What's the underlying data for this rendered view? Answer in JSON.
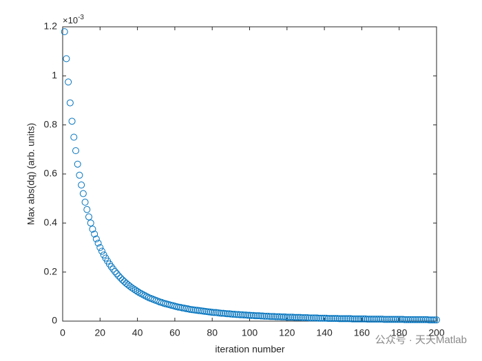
{
  "chart_data": {
    "type": "scatter",
    "xlabel": "iteration number",
    "ylabel": "Max abs(dq) (arb. units)",
    "y_exponent_base": "×10",
    "y_exponent_power": "-3",
    "watermark": "公众号 · 天天Matlab",
    "color": "#0072BD",
    "xlim": [
      0,
      200
    ],
    "ylim": [
      0,
      1.2
    ],
    "xticks": [
      0,
      20,
      40,
      60,
      80,
      100,
      120,
      140,
      160,
      180,
      200
    ],
    "yticks": [
      0,
      0.2,
      0.4,
      0.6,
      0.8,
      1,
      1.2
    ],
    "x": [
      1,
      2,
      3,
      4,
      5,
      6,
      7,
      8,
      9,
      10,
      11,
      12,
      13,
      14,
      15,
      16,
      17,
      18,
      19,
      20,
      21,
      22,
      23,
      24,
      25,
      26,
      27,
      28,
      29,
      30,
      31,
      32,
      33,
      34,
      35,
      36,
      37,
      38,
      39,
      40,
      41,
      42,
      43,
      44,
      45,
      46,
      47,
      48,
      49,
      50,
      51,
      52,
      53,
      54,
      55,
      56,
      57,
      58,
      59,
      60,
      61,
      62,
      63,
      64,
      65,
      66,
      67,
      68,
      69,
      70,
      71,
      72,
      73,
      74,
      75,
      76,
      77,
      78,
      79,
      80,
      81,
      82,
      83,
      84,
      85,
      86,
      87,
      88,
      89,
      90,
      91,
      92,
      93,
      94,
      95,
      96,
      97,
      98,
      99,
      100,
      101,
      102,
      103,
      104,
      105,
      106,
      107,
      108,
      109,
      110,
      111,
      112,
      113,
      114,
      115,
      116,
      117,
      118,
      119,
      120,
      121,
      122,
      123,
      124,
      125,
      126,
      127,
      128,
      129,
      130,
      131,
      132,
      133,
      134,
      135,
      136,
      137,
      138,
      139,
      140,
      141,
      142,
      143,
      144,
      145,
      146,
      147,
      148,
      149,
      150,
      151,
      152,
      153,
      154,
      155,
      156,
      157,
      158,
      159,
      160,
      161,
      162,
      163,
      164,
      165,
      166,
      167,
      168,
      169,
      170,
      171,
      172,
      173,
      174,
      175,
      176,
      177,
      178,
      179,
      180,
      181,
      182,
      183,
      184,
      185,
      186,
      187,
      188,
      189,
      190,
      191,
      192,
      193,
      194,
      195,
      196,
      197,
      198,
      199,
      200
    ],
    "values": [
      1.18,
      1.07,
      0.975,
      0.89,
      0.815,
      0.75,
      0.695,
      0.64,
      0.595,
      0.555,
      0.52,
      0.485,
      0.455,
      0.425,
      0.4,
      0.375,
      0.355,
      0.335,
      0.318,
      0.3,
      0.285,
      0.27,
      0.257,
      0.245,
      0.233,
      0.222,
      0.212,
      0.202,
      0.193,
      0.184,
      0.176,
      0.168,
      0.161,
      0.154,
      0.148,
      0.142,
      0.136,
      0.131,
      0.126,
      0.121,
      0.116,
      0.112,
      0.108,
      0.104,
      0.1,
      0.096,
      0.093,
      0.09,
      0.087,
      0.084,
      0.081,
      0.078,
      0.076,
      0.073,
      0.071,
      0.069,
      0.067,
      0.065,
      0.063,
      0.061,
      0.059,
      0.057,
      0.056,
      0.054,
      0.053,
      0.051,
      0.05,
      0.048,
      0.047,
      0.046,
      0.045,
      0.044,
      0.043,
      0.042,
      0.041,
      0.04,
      0.039,
      0.038,
      0.037,
      0.036,
      0.035,
      0.035,
      0.034,
      0.033,
      0.032,
      0.032,
      0.031,
      0.03,
      0.03,
      0.029,
      0.028,
      0.028,
      0.027,
      0.027,
      0.026,
      0.026,
      0.025,
      0.025,
      0.024,
      0.024,
      0.023,
      0.023,
      0.022,
      0.022,
      0.022,
      0.021,
      0.021,
      0.02,
      0.02,
      0.02,
      0.019,
      0.019,
      0.019,
      0.018,
      0.018,
      0.018,
      0.017,
      0.017,
      0.017,
      0.016,
      0.016,
      0.016,
      0.016,
      0.015,
      0.015,
      0.015,
      0.015,
      0.014,
      0.014,
      0.014,
      0.014,
      0.013,
      0.013,
      0.013,
      0.013,
      0.013,
      0.012,
      0.012,
      0.012,
      0.012,
      0.012,
      0.011,
      0.011,
      0.011,
      0.011,
      0.011,
      0.011,
      0.01,
      0.01,
      0.01,
      0.01,
      0.01,
      0.01,
      0.01,
      0.009,
      0.009,
      0.009,
      0.009,
      0.009,
      0.009,
      0.009,
      0.009,
      0.008,
      0.008,
      0.008,
      0.008,
      0.008,
      0.008,
      0.008,
      0.008,
      0.008,
      0.007,
      0.007,
      0.007,
      0.007,
      0.007,
      0.007,
      0.007,
      0.007,
      0.007,
      0.007,
      0.007,
      0.006,
      0.006,
      0.006,
      0.006,
      0.006,
      0.006,
      0.006,
      0.006,
      0.006,
      0.006,
      0.006,
      0.006,
      0.006,
      0.005,
      0.005,
      0.005,
      0.005,
      0.005
    ]
  }
}
